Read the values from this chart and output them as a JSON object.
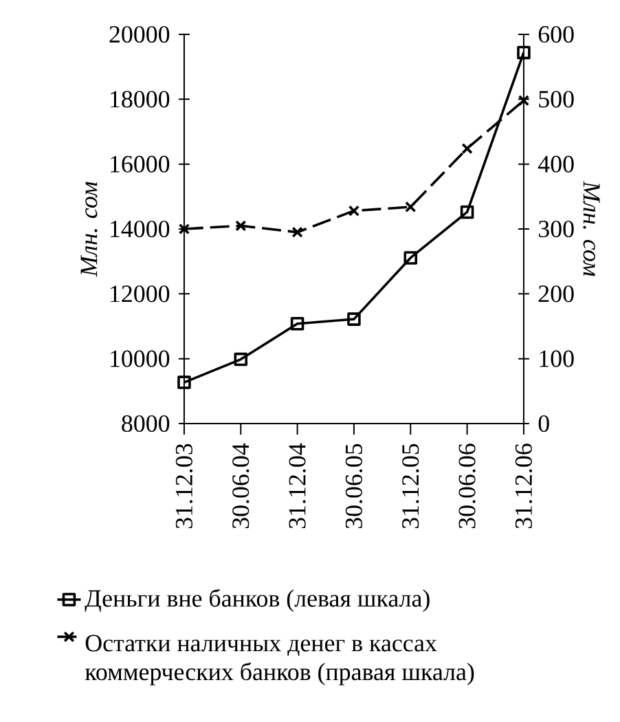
{
  "chart_data": {
    "type": "line",
    "categories": [
      "31.12.03",
      "30.06.04",
      "31.12.04",
      "30.06.05",
      "31.12.05",
      "30.06.06",
      "31.12.06"
    ],
    "series": [
      {
        "name": "Деньги вне банков (левая шкала)",
        "color": "#000000",
        "marker": "square",
        "line_style": "solid",
        "values": [
          9270,
          9980,
          11080,
          11220,
          13110,
          14520,
          19440
        ]
      },
      {
        "name": "Остатки наличных денег в кассах коммерческих банков (правая шкала)",
        "color": "#000000",
        "marker": "cross",
        "line_style": "dashed",
        "axis": "y2",
        "values": [
          300,
          305,
          295,
          328,
          334,
          424,
          498
        ]
      }
    ],
    "ylabel": "Млн. сом",
    "y2label": "Млн. сом",
    "ylim": [
      8000,
      20000
    ],
    "yticks": [
      8000,
      10000,
      12000,
      14000,
      16000,
      18000,
      20000
    ],
    "y2lim": [
      0,
      600
    ],
    "y2ticks": [
      0,
      100,
      200,
      300,
      400,
      500,
      600
    ],
    "grid": false,
    "legend": "bottom"
  }
}
